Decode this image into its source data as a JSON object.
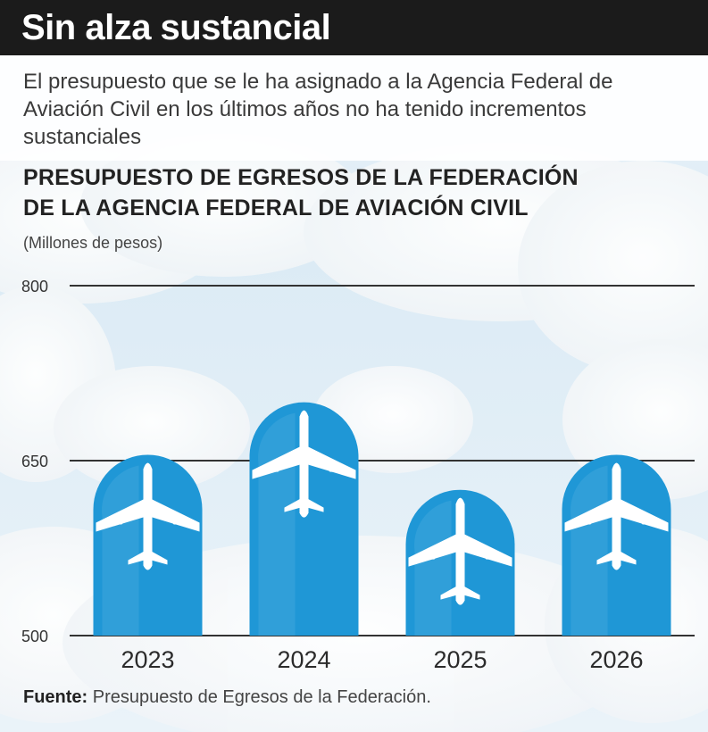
{
  "header": {
    "title": "Sin alza sustancial"
  },
  "intro": "El presupuesto que se le ha asignado a la Agencia Federal de Aviación Civil en los últimos años no ha tenido incrementos sustanciales",
  "chart_data": {
    "type": "bar",
    "title_line1": "PRESUPUESTO DE EGRESOS DE LA FEDERACIÓN",
    "title_line2": "DE LA AGENCIA FEDERAL DE AVIACIÓN CIVIL",
    "units": "(Millones de pesos)",
    "categories": [
      "2023",
      "2024",
      "2025",
      "2026"
    ],
    "values": [
      655,
      700,
      625,
      655
    ],
    "ylim": [
      500,
      800
    ],
    "yticks": [
      500,
      650,
      800
    ],
    "grid": true,
    "bar_color": "#1f97d6",
    "bar_icon": "airplane-icon"
  },
  "source": {
    "label": "Fuente:",
    "text": "Presupuesto de Egresos de la Federación."
  }
}
